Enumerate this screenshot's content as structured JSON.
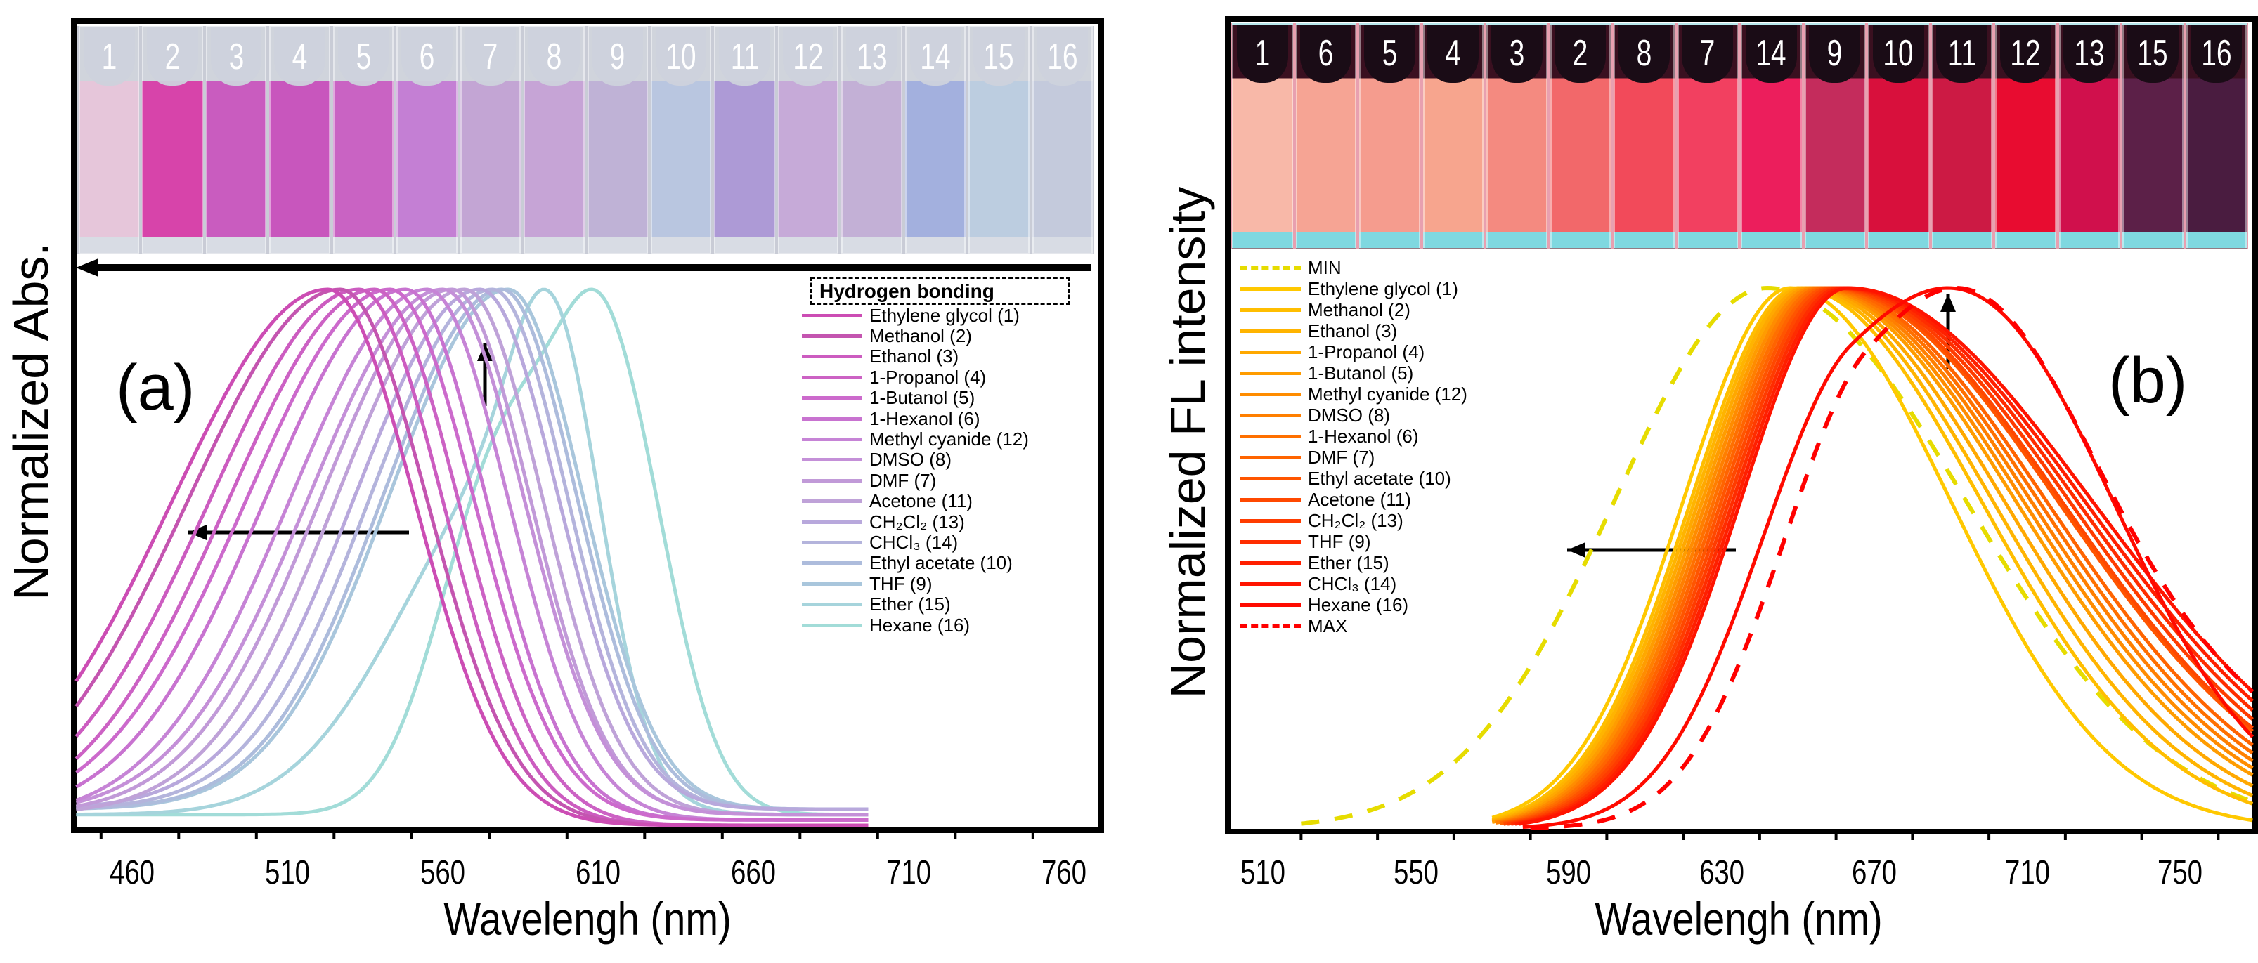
{
  "chart_data": [
    {
      "type": "line",
      "panel_label": "(a)",
      "xlabel": "Wavelengh (nm)",
      "ylabel": "Normalized Abs.",
      "xlim": [
        440,
        772
      ],
      "ylim": [
        0,
        1
      ],
      "xticks": [
        "460",
        "510",
        "560",
        "610",
        "660",
        "710",
        "760"
      ],
      "grid": false,
      "legend_header": "Hydrogen bonding",
      "legend_placement": "right",
      "vial_order": [
        "1",
        "2",
        "3",
        "4",
        "5",
        "6",
        "7",
        "8",
        "9",
        "10",
        "11",
        "12",
        "13",
        "14",
        "15",
        "16"
      ],
      "vial_colors": [
        "#e6c6da",
        "#d744aa",
        "#c95cbf",
        "#c856bd",
        "#c963c3",
        "#c47fd4",
        "#c3a5d4",
        "#c6a4d6",
        "#bfb2d6",
        "#b9c6e0",
        "#ad9ad6",
        "#c6aad8",
        "#c3b0d6",
        "#a3b0de",
        "#bccde0",
        "#c4cadc"
      ],
      "series": [
        {
          "name": "Ethylene glycol (1)",
          "peak": 523,
          "sigma_left": 50,
          "sigma_right": 28,
          "base": 0.0,
          "color": "#cc4db4"
        },
        {
          "name": "Methanol (2)",
          "peak": 527,
          "sigma_left": 49,
          "sigma_right": 28,
          "base": 0.0,
          "color": "#c455b0"
        },
        {
          "name": "Ethanol (3)",
          "peak": 533,
          "sigma_left": 48,
          "sigma_right": 27,
          "base": 0.0,
          "color": "#cc5cc0"
        },
        {
          "name": "1-Propanol (4)",
          "peak": 538,
          "sigma_left": 47,
          "sigma_right": 27,
          "base": 0.0,
          "color": "#cc62c4"
        },
        {
          "name": "1-Butanol (5)",
          "peak": 543,
          "sigma_left": 46,
          "sigma_right": 27,
          "base": 0.01,
          "color": "#cc6acc"
        },
        {
          "name": "1-Hexanol (6)",
          "peak": 548,
          "sigma_left": 45,
          "sigma_right": 26,
          "base": 0.01,
          "color": "#c873d0"
        },
        {
          "name": "Methyl cyanide (12)",
          "peak": 555,
          "sigma_left": 44,
          "sigma_right": 26,
          "base": 0.01,
          "color": "#c684d6"
        },
        {
          "name": "DMSO (8)",
          "peak": 560,
          "sigma_left": 43,
          "sigma_right": 26,
          "base": 0.02,
          "color": "#c490d8"
        },
        {
          "name": "DMF (7)",
          "peak": 563,
          "sigma_left": 42,
          "sigma_right": 25,
          "base": 0.02,
          "color": "#c19ad8"
        },
        {
          "name": "Acetone (11)",
          "peak": 567,
          "sigma_left": 41,
          "sigma_right": 25,
          "base": 0.02,
          "color": "#bfa2d8"
        },
        {
          "name": "CH₂Cl₂ (13)",
          "peak": 572,
          "sigma_left": 40,
          "sigma_right": 25,
          "base": 0.03,
          "color": "#b8a8dc"
        },
        {
          "name": "CHCl₃ (14)",
          "peak": 576,
          "sigma_left": 39,
          "sigma_right": 24,
          "base": 0.03,
          "color": "#b4b4dc"
        },
        {
          "name": "Ethyl acetate (10)",
          "peak": 579,
          "sigma_left": 38,
          "sigma_right": 24,
          "base": 0.03,
          "color": "#adbcdc"
        },
        {
          "name": "THF (9)",
          "peak": 581,
          "sigma_left": 38,
          "sigma_right": 24,
          "base": 0.03,
          "color": "#a9c6dc"
        },
        {
          "name": "Ether (15)",
          "peak": 583,
          "sigma_left": 36,
          "sigma_right": 22,
          "base": 0.02,
          "shoulder_peak": 598,
          "shoulder_amp": 0.7,
          "shoulder_sigma": 14,
          "color": "#a6d4dc"
        },
        {
          "name": "Hexane (16)",
          "peak": 614,
          "sigma_left": 16,
          "sigma_right": 18,
          "base": 0.02,
          "shoulder_peak": 580,
          "shoulder_amp": 0.85,
          "shoulder_sigma": 20,
          "color": "#a2dcd8"
        }
      ],
      "annotations": [
        "arrow-left: blue shift with hydrogen bonding",
        "arrow-up"
      ]
    },
    {
      "type": "line",
      "panel_label": "(b)",
      "xlabel": "Wavelengh (nm)",
      "ylabel": "Normalized FL intensity",
      "xlim": [
        500,
        770
      ],
      "ylim": [
        0,
        1
      ],
      "xticks": [
        "510",
        "550",
        "590",
        "630",
        "670",
        "710",
        "750"
      ],
      "grid": false,
      "legend_placement": "left",
      "vial_order": [
        "1",
        "6",
        "5",
        "4",
        "3",
        "2",
        "8",
        "7",
        "14",
        "9",
        "10",
        "11",
        "12",
        "13",
        "15",
        "16"
      ],
      "vial_colors": [
        "#f8b8a8",
        "#f6a494",
        "#f59c8e",
        "#f7a58e",
        "#f48a80",
        "#f2686a",
        "#f24a5a",
        "#f24060",
        "#ec1e5c",
        "#c42c5c",
        "#d8103c",
        "#cc1a44",
        "#e80c30",
        "#d0104c",
        "#5c2048",
        "#4a1c40"
      ],
      "series": [
        {
          "name": "MIN",
          "peak": 642,
          "start": 520,
          "sigma_left": 40,
          "sigma_right": 52,
          "dashed": true,
          "color": "#e6dc00"
        },
        {
          "name": "Ethylene glycol (1)",
          "peak": 648,
          "start": 570,
          "sigma_left": 28,
          "sigma_right": 42,
          "color": "#ffc800"
        },
        {
          "name": "Methanol (2)",
          "peak": 650,
          "start": 570,
          "sigma_left": 28,
          "sigma_right": 48,
          "color": "#ffbe00"
        },
        {
          "name": "Ethanol (3)",
          "peak": 651,
          "start": 570,
          "sigma_left": 28,
          "sigma_right": 50,
          "color": "#ffb400"
        },
        {
          "name": "1-Propanol (4)",
          "peak": 652,
          "start": 570,
          "sigma_left": 28,
          "sigma_right": 52,
          "color": "#ffa800"
        },
        {
          "name": "1-Butanol (5)",
          "peak": 653,
          "start": 570,
          "sigma_left": 28,
          "sigma_right": 54,
          "color": "#ff9c00"
        },
        {
          "name": "Methyl cyanide (12)",
          "peak": 654,
          "start": 571,
          "sigma_left": 28,
          "sigma_right": 55,
          "color": "#ff8c00"
        },
        {
          "name": "DMSO (8)",
          "peak": 655,
          "start": 571,
          "sigma_left": 28,
          "sigma_right": 56,
          "color": "#ff7f00"
        },
        {
          "name": "1-Hexanol (6)",
          "peak": 656,
          "start": 572,
          "sigma_left": 28,
          "sigma_right": 57,
          "color": "#ff7000"
        },
        {
          "name": "DMF (7)",
          "peak": 657,
          "start": 572,
          "sigma_left": 28,
          "sigma_right": 58,
          "color": "#ff6400"
        },
        {
          "name": "Ethyl acetate (10)",
          "peak": 658,
          "start": 573,
          "sigma_left": 28,
          "sigma_right": 60,
          "color": "#ff5500"
        },
        {
          "name": "Acetone (11)",
          "peak": 659,
          "start": 573,
          "sigma_left": 28,
          "sigma_right": 60,
          "color": "#ff4800"
        },
        {
          "name": "CH₂Cl₂ (13)",
          "peak": 660,
          "start": 574,
          "sigma_left": 28,
          "sigma_right": 61,
          "color": "#ff3c00"
        },
        {
          "name": "THF (9)",
          "peak": 661,
          "start": 575,
          "sigma_left": 28,
          "sigma_right": 62,
          "color": "#ff2d00"
        },
        {
          "name": "Ether (15)",
          "peak": 662,
          "start": 576,
          "sigma_left": 28,
          "sigma_right": 63,
          "color": "#ff2000"
        },
        {
          "name": "CHCl₃ (14)",
          "peak": 663,
          "start": 577,
          "sigma_left": 28,
          "sigma_right": 64,
          "color": "#ff1400"
        },
        {
          "name": "Hexane (16)",
          "peak": 664,
          "start": 578,
          "sigma_left": 26,
          "sigma_right": 55,
          "shoulder_peak": 705,
          "shoulder_amp": 0.55,
          "shoulder_sigma": 32,
          "color": "#ff0a00"
        },
        {
          "name": "MAX",
          "peak": 668,
          "start": 580,
          "sigma_left": 25,
          "sigma_right": 70,
          "shoulder_peak": 698,
          "shoulder_amp": 0.55,
          "shoulder_sigma": 28,
          "dashed": true,
          "color": "#ff0000"
        }
      ],
      "annotations": [
        "arrow-left",
        "arrow-up"
      ]
    }
  ]
}
